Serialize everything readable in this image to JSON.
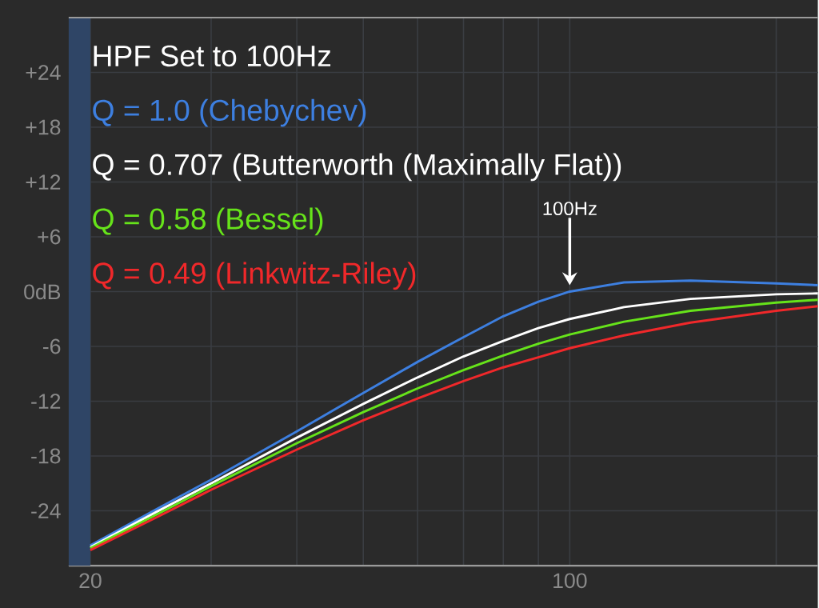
{
  "chart_data": {
    "type": "line",
    "title": "HPF Set to 100Hz",
    "x": [
      20,
      25,
      30,
      40,
      50,
      60,
      70,
      80,
      90,
      100,
      120,
      150,
      200,
      230
    ],
    "series": [
      {
        "name": "Q = 1.0 (Chebychev)",
        "color": "#3d7fe0",
        "values": [
          -27.8,
          -23.8,
          -20.6,
          -15.3,
          -11.1,
          -7.7,
          -5.0,
          -2.7,
          -1.1,
          0,
          1.0,
          1.2,
          0.9,
          0.7
        ]
      },
      {
        "name": "Q = 0.707 (Butterworth (Maximally Flat))",
        "color": "#ffffff",
        "values": [
          -28.0,
          -24.1,
          -21.0,
          -16.0,
          -12.3,
          -9.4,
          -7.1,
          -5.4,
          -4.0,
          -3.0,
          -1.7,
          -0.8,
          -0.3,
          -0.2
        ]
      },
      {
        "name": "Q = 0.58 (Bessel)",
        "color": "#66e31a",
        "values": [
          -28.1,
          -24.4,
          -21.3,
          -16.6,
          -13.2,
          -10.6,
          -8.6,
          -7.0,
          -5.7,
          -4.7,
          -3.3,
          -2.1,
          -1.2,
          -0.9
        ]
      },
      {
        "name": "Q = 0.49 (Linkwitz-Riley)",
        "color": "#f0282a",
        "values": [
          -28.3,
          -24.7,
          -21.7,
          -17.3,
          -14.1,
          -11.7,
          -9.8,
          -8.3,
          -7.2,
          -6.2,
          -4.8,
          -3.4,
          -2.1,
          -1.6
        ]
      }
    ],
    "xlim": [
      18.6,
      230
    ],
    "ylim": [
      -30,
      30
    ],
    "log": "x",
    "xticks": [
      20,
      {
        "value": 30,
        "label": null
      },
      {
        "value": 40,
        "label": null
      },
      {
        "value": 50,
        "label": null
      },
      {
        "value": 60,
        "label": null
      },
      {
        "value": 70,
        "label": null
      },
      {
        "value": 80,
        "label": null
      },
      {
        "value": 90,
        "label": null
      },
      100,
      {
        "value": 200,
        "label": null
      }
    ],
    "yticks": [
      -24,
      -18,
      -12,
      -6,
      {
        "value": 0,
        "label": "0dB"
      },
      {
        "value": 6,
        "label": "+6"
      },
      {
        "value": 12,
        "label": "+12"
      },
      {
        "value": 18,
        "label": "+18"
      },
      {
        "value": 24,
        "label": "+24"
      }
    ],
    "grid": true,
    "legend": "top left",
    "bands": [
      {
        "axis": "x",
        "from": 18.6,
        "to": 20,
        "color": "#2f4566"
      }
    ],
    "annotations": [
      {
        "text": "100Hz",
        "x": 100,
        "y": 0
      }
    ]
  }
}
